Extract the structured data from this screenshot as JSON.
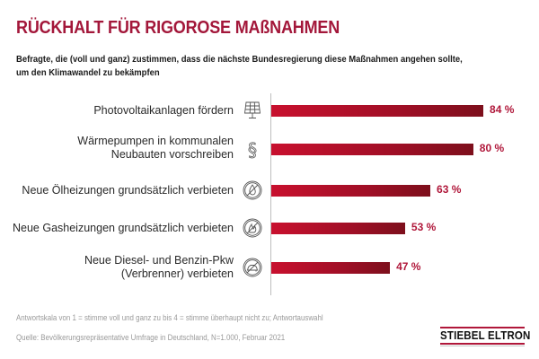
{
  "header": {
    "title": "RÜCKHALT FÜR RIGOROSE MAßNAHMEN",
    "subtitle_line1": "Befragte, die (voll und ganz) zustimmen, dass die nächste Bundesregierung diese Maßnahmen angehen sollte,",
    "subtitle_line2": "um den Klimawandel zu bekämpfen"
  },
  "chart_data": {
    "type": "bar",
    "orientation": "horizontal",
    "title": "RÜCKHALT FÜR RIGOROSE MAßNAHMEN",
    "subtitle": "Befragte, die (voll und ganz) zustimmen, dass die nächste Bundesregierung diese Maßnahmen angehen sollte, um den Klimawandel zu bekämpfen",
    "xlabel": "",
    "ylabel": "",
    "xlim": [
      0,
      100
    ],
    "grid": false,
    "unit": "%",
    "categories": [
      "Photovoltaikanlagen fördern",
      "Wärmepumpen in kommunalen Neubauten vorschreiben",
      "Neue Ölheizungen grundsätzlich verbieten",
      "Neue Gasheizungen grundsätzlich verbieten",
      "Neue Diesel- und Benzin-Pkw (Verbrenner) verbieten"
    ],
    "values": [
      84,
      80,
      63,
      53,
      47
    ],
    "value_labels": [
      "84 %",
      "80 %",
      "63 %",
      "53 %",
      "47 %"
    ],
    "bar_color": "#b5122e"
  },
  "rows": [
    {
      "label_lines": [
        "Photovoltaikanlagen fördern"
      ],
      "icon": "solar-panel-icon",
      "value_label": "84 %"
    },
    {
      "label_lines": [
        "Wärmepumpen in kommunalen",
        "Neubauten vorschreiben"
      ],
      "icon": "paragraph-icon",
      "value_label": "80 %"
    },
    {
      "label_lines": [
        "Neue Ölheizungen grundsätzlich verbieten"
      ],
      "icon": "no-oil-icon",
      "value_label": "63 %"
    },
    {
      "label_lines": [
        "Neue Gasheizungen grundsätzlich verbieten"
      ],
      "icon": "no-gas-icon",
      "value_label": "53 %"
    },
    {
      "label_lines": [
        "Neue Diesel- und Benzin-Pkw",
        "(Verbrenner) verbieten"
      ],
      "icon": "no-car-icon",
      "value_label": "47 %"
    }
  ],
  "footer": {
    "note": "Antwortskala von 1 = stimme voll und ganz zu bis 4 = stimme überhaupt nicht zu; Antwortauswahl",
    "source": "Quelle: Bevölkerungsrepräsentative Umfrage in Deutschland, N=1.000, Februar 2021",
    "logo": "STIEBEL ELTRON"
  },
  "colors": {
    "title": "#a3173a",
    "bar": "#b5122e",
    "value_label": "#b0173a"
  }
}
